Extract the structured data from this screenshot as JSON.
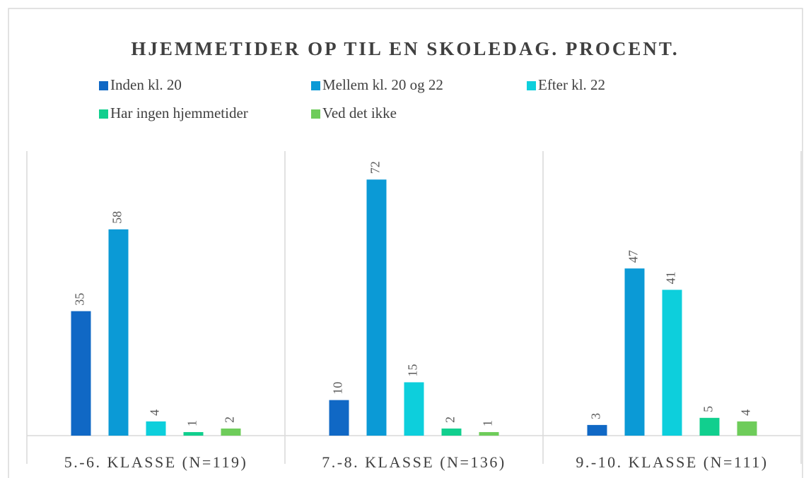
{
  "chart_data": {
    "type": "bar",
    "title": "HJEMMETIDER OP TIL EN SKOLEDAG. PROCENT.",
    "categories": [
      "5.-6. KLASSE (N=119)",
      "7.-8. KLASSE (N=136)",
      "9.-10. KLASSE (N=111)"
    ],
    "series": [
      {
        "name": "Inden kl. 20",
        "color": "#1068c5",
        "values": [
          35,
          10,
          3
        ]
      },
      {
        "name": "Mellem kl. 20 og 22",
        "color": "#0b9ad6",
        "values": [
          58,
          72,
          47
        ]
      },
      {
        "name": "Efter kl. 22",
        "color": "#0dcfdc",
        "values": [
          4,
          15,
          41
        ]
      },
      {
        "name": "Har ingen hjemmetider",
        "color": "#11cf8e",
        "values": [
          1,
          2,
          5
        ]
      },
      {
        "name": "Ved det ikke",
        "color": "#6ecc5a",
        "values": [
          2,
          1,
          4
        ]
      }
    ],
    "ylim": [
      0,
      80
    ]
  }
}
